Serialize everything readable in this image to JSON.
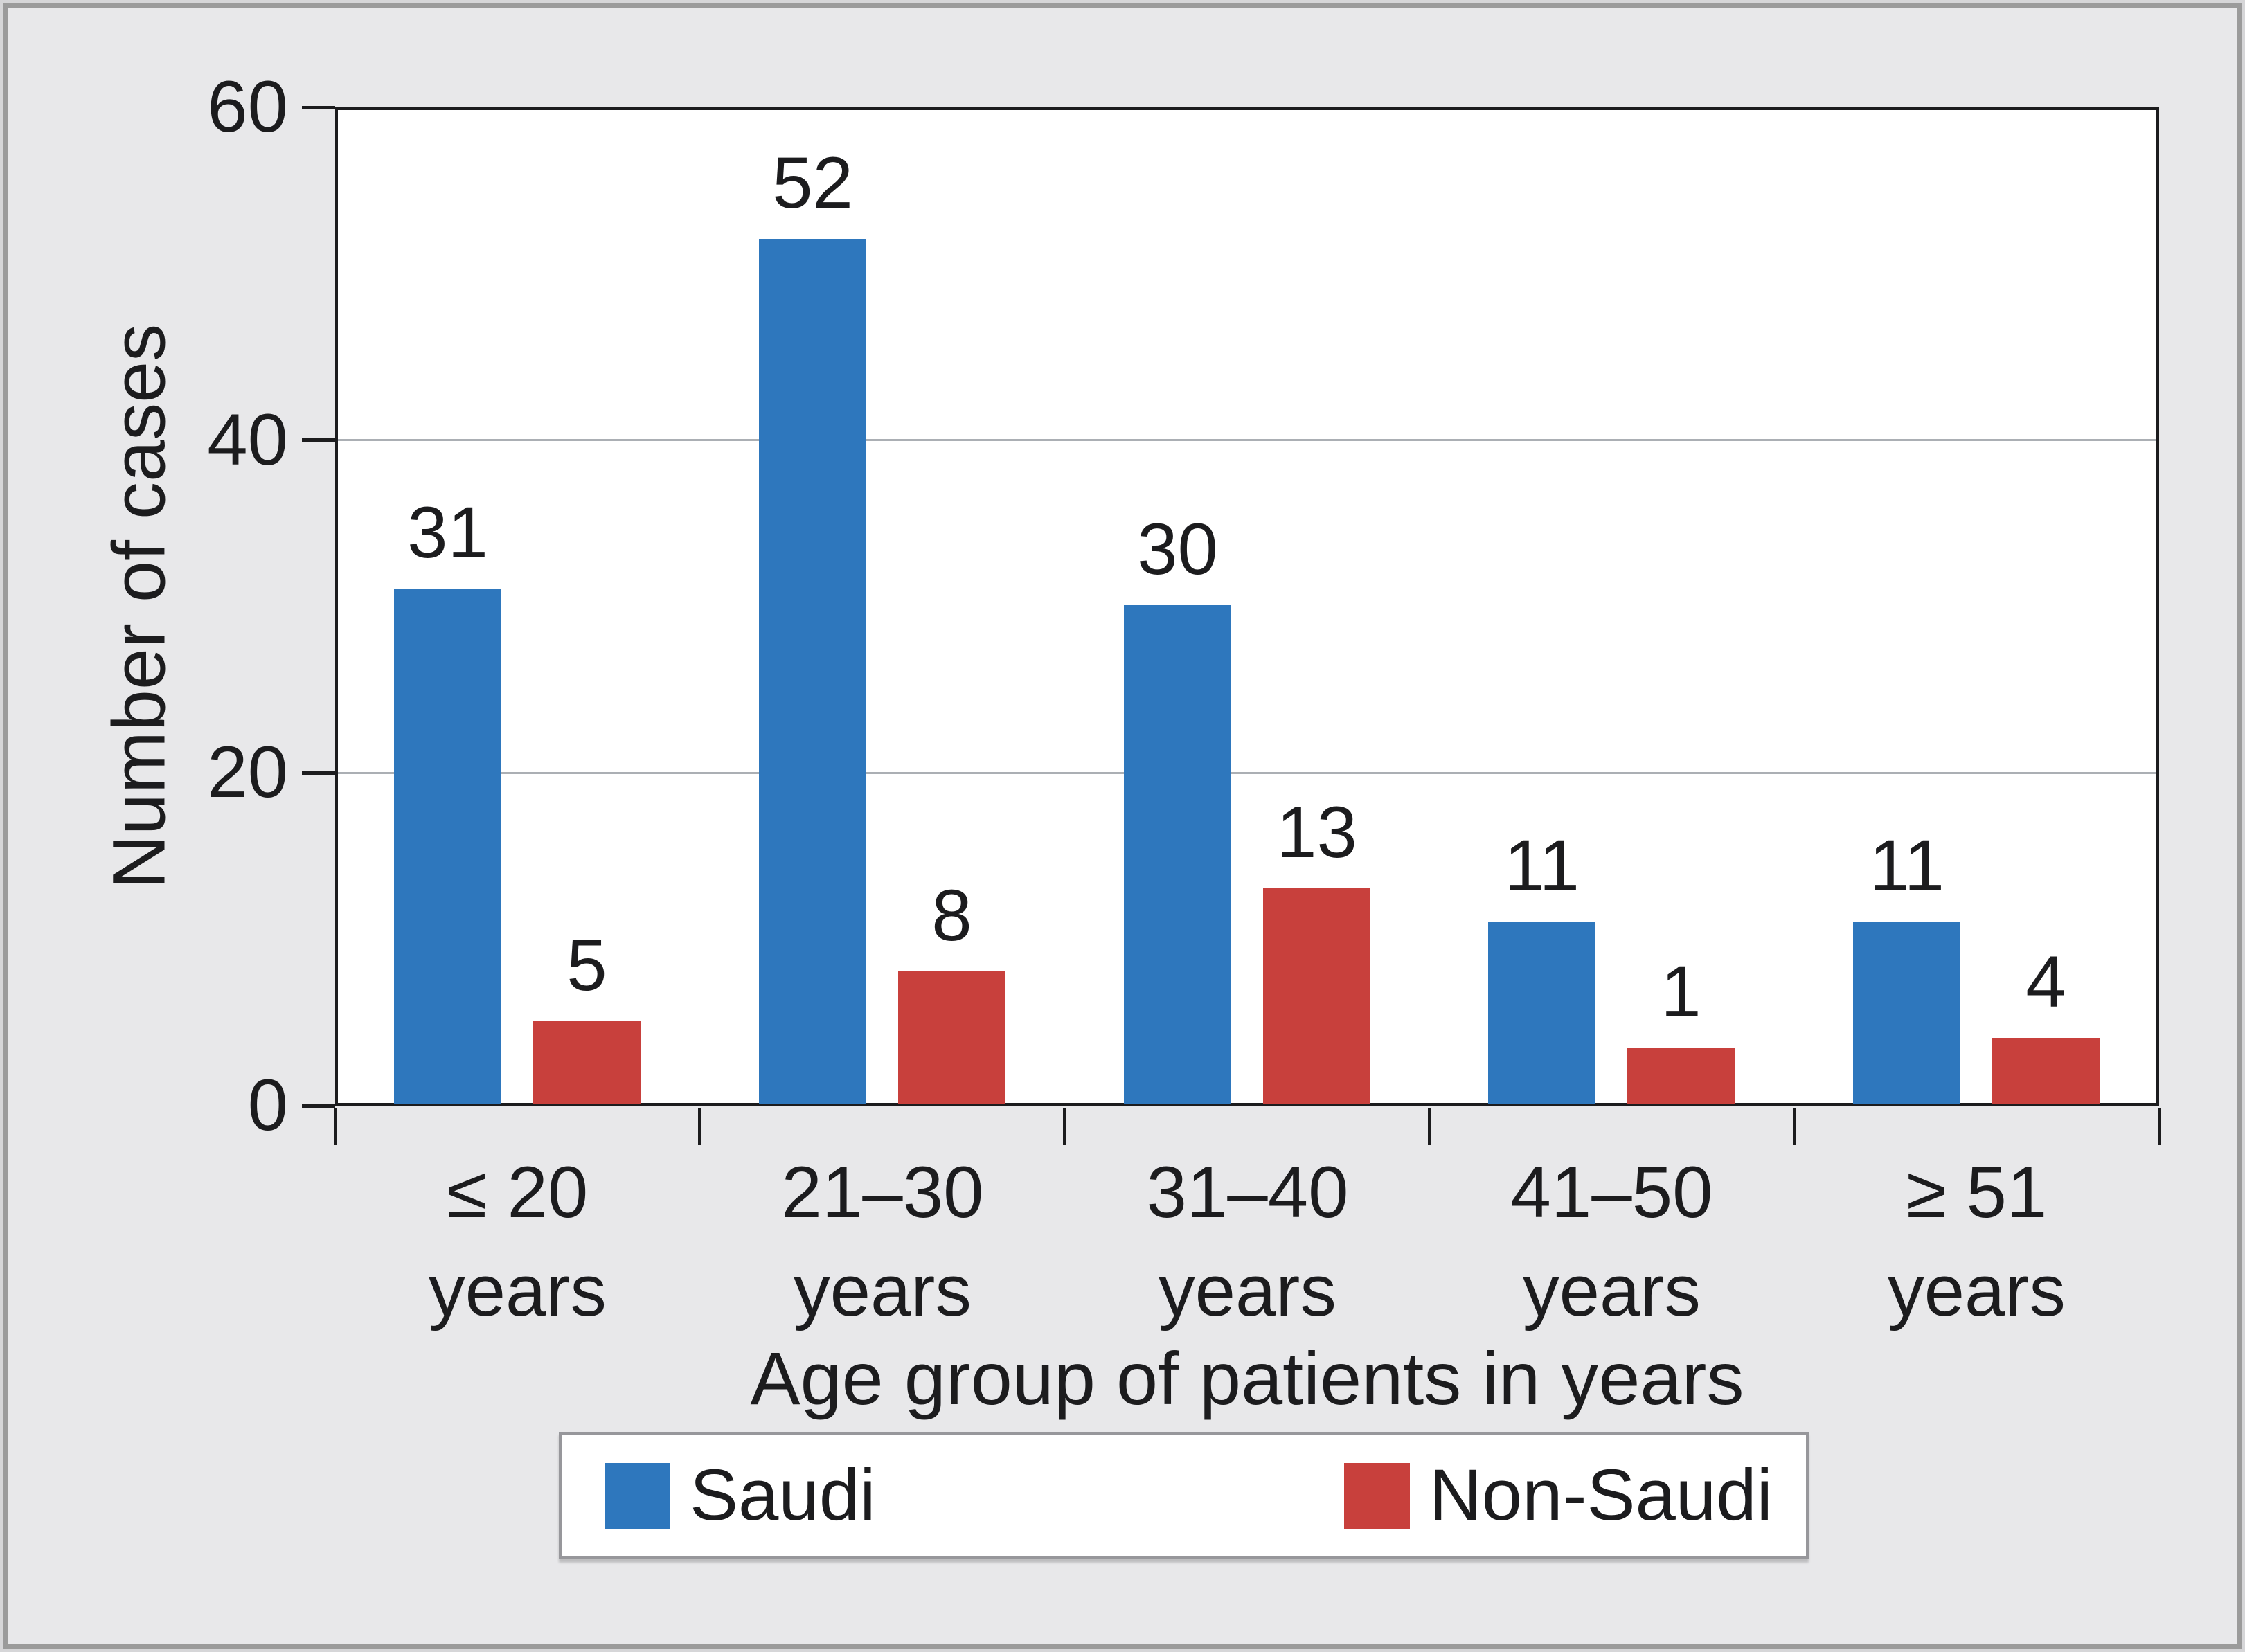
{
  "chart_data": {
    "type": "bar",
    "xlabel": "Age group of patients in years",
    "ylabel": "Number of cases",
    "categories": [
      "≤ 20\nyears",
      "21–30\nyears",
      "31–40\nyears",
      "41–50\nyears",
      "≥ 51\nyears"
    ],
    "series": [
      {
        "name": "Saudi",
        "color": "#2E77BD",
        "values": [
          31,
          52,
          30,
          11,
          11
        ]
      },
      {
        "name": "Non-Saudi",
        "color": "#C8403C",
        "values": [
          5,
          8,
          13,
          1,
          4
        ]
      }
    ],
    "ylim": [
      0,
      60
    ],
    "yticks": [
      0,
      20,
      40,
      60
    ],
    "grid": "horizontal",
    "legend_position": "bottom",
    "bar_labels": true,
    "min_drawn_value": 3.4
  }
}
